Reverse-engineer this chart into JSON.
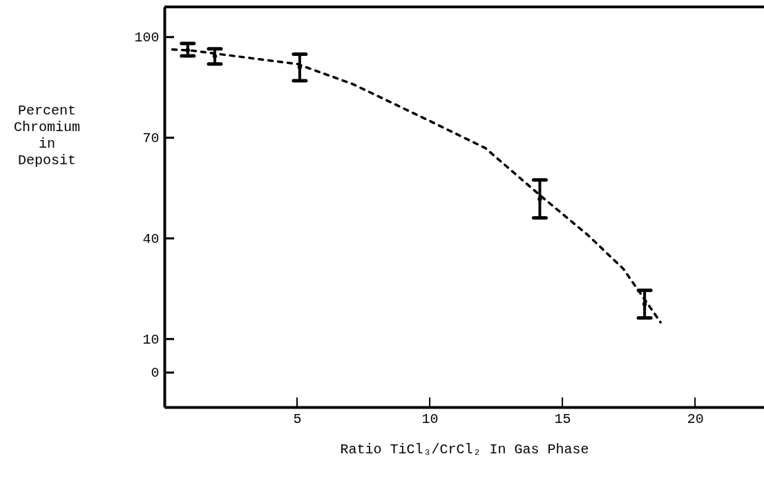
{
  "chart_data": {
    "type": "scatter",
    "xlabel": "Ratio TiCl₃/CrCl₂ In Gas Phase",
    "ylabel": "Percent\nChromium\nin\nDeposit",
    "xlim": [
      0,
      22.6
    ],
    "ylim": [
      -10.3,
      109
    ],
    "xticks": [
      5,
      10,
      15,
      20
    ],
    "yticks": [
      0,
      10,
      40,
      70,
      100
    ],
    "grid": false,
    "series": [
      {
        "type": "scatter",
        "marker": "circle",
        "color": "#000000",
        "x": [
          0.88,
          1.9,
          5.1,
          14.15,
          18.1
        ],
        "values": [
          96.1,
          94.3,
          91,
          51.7,
          20.4
        ],
        "errors": [
          [
            94.4,
            98.1
          ],
          [
            92,
            96.5
          ],
          [
            87,
            94.9
          ],
          [
            46.1,
            57.4
          ],
          [
            16.3,
            24.5
          ]
        ]
      },
      {
        "type": "line",
        "line_style": "dashed",
        "color": "#000000",
        "x": [
          0.3,
          1,
          2,
          3,
          5,
          7.1,
          10,
          12.1,
          14.15,
          15.96,
          17.3,
          18.7
        ],
        "values": [
          96.3,
          96,
          95,
          94,
          92,
          86,
          75,
          66.9,
          52.9,
          41,
          30.9,
          15
        ]
      }
    ]
  }
}
